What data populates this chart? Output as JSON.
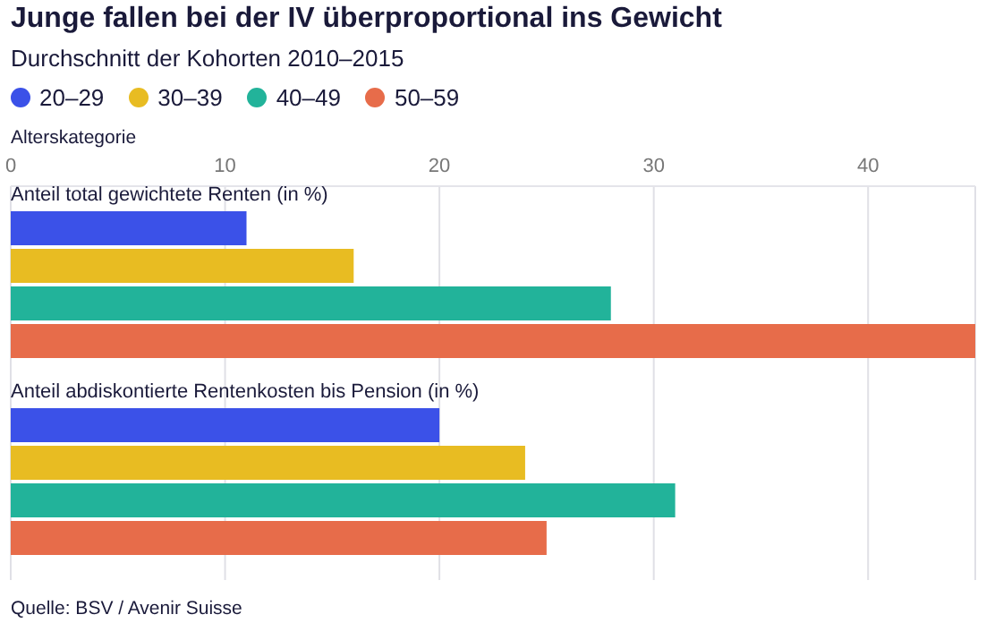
{
  "chart_data": {
    "type": "bar",
    "orientation": "horizontal",
    "title": "Junge fallen bei der IV überproportional ins Gewicht",
    "subtitle": "Durchschnitt der Kohorten 2010–2015",
    "xlabel": "Alterskategorie",
    "categories": [
      "Anteil total gewichtete Renten (in %)",
      "Anteil abdiskontierte Rentenkosten bis Pension (in %)"
    ],
    "series": [
      {
        "name": "20–29",
        "color": "#3b51e8",
        "values": [
          11,
          20
        ]
      },
      {
        "name": "30–39",
        "color": "#e8bc22",
        "values": [
          16,
          24
        ]
      },
      {
        "name": "40–49",
        "color": "#22b39a",
        "values": [
          28,
          31
        ]
      },
      {
        "name": "50–59",
        "color": "#e76c4a",
        "values": [
          45,
          25
        ]
      }
    ],
    "xlim": [
      0,
      45
    ],
    "xticks": [
      0,
      10,
      20,
      30,
      40
    ],
    "grid": "x",
    "legend": "top left",
    "annotations": [
      "Quelle: BSV / Avenir Suisse"
    ]
  }
}
